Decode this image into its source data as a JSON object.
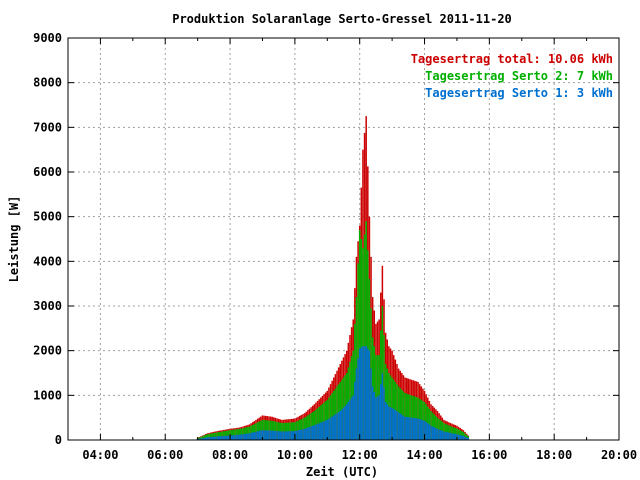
{
  "chart_data": {
    "type": "bar",
    "title": "Produktion Solaranlage Serto-Gressel 2011-11-20",
    "xlabel": "Zeit (UTC)",
    "ylabel": "Leistung [W]",
    "xlim": [
      3.0,
      20.0
    ],
    "ylim": [
      0,
      9000
    ],
    "x_ticks": [
      {
        "v": 4,
        "label": "04:00"
      },
      {
        "v": 6,
        "label": "06:00"
      },
      {
        "v": 8,
        "label": "08:00"
      },
      {
        "v": 10,
        "label": "10:00"
      },
      {
        "v": 12,
        "label": "12:00"
      },
      {
        "v": 14,
        "label": "14:00"
      },
      {
        "v": 16,
        "label": "16:00"
      },
      {
        "v": 18,
        "label": "18:00"
      },
      {
        "v": 20,
        "label": "20:00"
      }
    ],
    "y_ticks": [
      0,
      1000,
      2000,
      3000,
      4000,
      5000,
      6000,
      7000,
      8000,
      9000
    ],
    "grid": true,
    "legend_position": "top-right",
    "legend": [
      {
        "label": "Tagesertrag total: 10.06 kWh",
        "color": "#cc0000"
      },
      {
        "label": "Tagesertrag Serto 2: 7 kWh",
        "color": "#00b000"
      },
      {
        "label": "Tagesertrag Serto 1: 3 kWh",
        "color": "#0070d0"
      }
    ],
    "series_colors": {
      "total": "#cc0000",
      "serto2": "#00b000",
      "serto1": "#0070d0"
    },
    "keypoints": {
      "time": [
        7.0,
        7.3,
        7.6,
        8.0,
        8.3,
        8.6,
        9.0,
        9.3,
        9.6,
        10.0,
        10.3,
        10.6,
        11.0,
        11.2,
        11.4,
        11.6,
        11.8,
        11.9,
        12.0,
        12.1,
        12.2,
        12.3,
        12.4,
        12.5,
        12.6,
        12.7,
        12.8,
        12.9,
        13.0,
        13.2,
        13.4,
        13.6,
        13.8,
        14.0,
        14.2,
        14.4,
        14.6,
        14.8,
        15.0,
        15.2,
        15.4
      ],
      "total": [
        50,
        150,
        200,
        250,
        280,
        350,
        550,
        520,
        450,
        480,
        600,
        800,
        1100,
        1400,
        1700,
        2000,
        2700,
        4100,
        4800,
        6500,
        7250,
        5000,
        3200,
        2600,
        2700,
        3900,
        2400,
        2100,
        2000,
        1600,
        1400,
        1350,
        1300,
        1100,
        800,
        650,
        450,
        380,
        320,
        220,
        60
      ],
      "serto2": [
        40,
        130,
        170,
        220,
        250,
        300,
        450,
        430,
        380,
        400,
        500,
        650,
        900,
        1100,
        1300,
        1500,
        2000,
        3200,
        4700,
        4300,
        4900,
        3600,
        2300,
        1900,
        1900,
        3000,
        1700,
        1500,
        1400,
        1200,
        1050,
        1000,
        950,
        850,
        650,
        500,
        380,
        310,
        260,
        180,
        50
      ],
      "serto1": [
        20,
        60,
        80,
        100,
        120,
        150,
        220,
        210,
        190,
        200,
        250,
        330,
        450,
        550,
        650,
        800,
        1000,
        1600,
        2050,
        2100,
        2100,
        2000,
        1200,
        950,
        1000,
        1500,
        850,
        750,
        720,
        620,
        520,
        500,
        480,
        430,
        320,
        250,
        190,
        160,
        130,
        90,
        30
      ]
    },
    "bar_interval_hours": 0.1
  }
}
